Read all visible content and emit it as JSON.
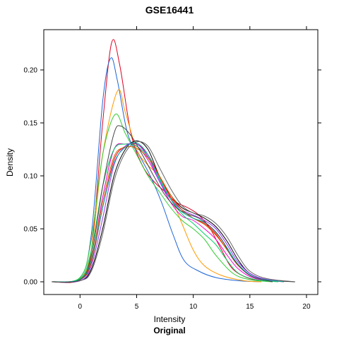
{
  "chart_data": {
    "type": "line",
    "title": "GSE16441",
    "xlabel": "Intensity",
    "ylabel": "Density",
    "subtitle": "Original",
    "xlim": [
      -3.2,
      21.0
    ],
    "ylim": [
      -0.012,
      0.238
    ],
    "xticks": [
      0,
      5,
      10,
      15,
      20
    ],
    "yticks": [
      0.0,
      0.05,
      0.1,
      0.15,
      0.2
    ],
    "xtick_labels": [
      "0",
      "5",
      "10",
      "15",
      "20"
    ],
    "ytick_labels": [
      "0.00",
      "0.05",
      "0.10",
      "0.15",
      "0.20"
    ],
    "grid": false,
    "legend": "none",
    "series": [
      {
        "color": "#DD0022",
        "points": [
          [
            -2.5,
            0.0
          ],
          [
            0,
            0.002
          ],
          [
            1,
            0.03
          ],
          [
            2,
            0.15
          ],
          [
            2.8,
            0.226
          ],
          [
            3.5,
            0.205
          ],
          [
            4.5,
            0.14
          ],
          [
            5.5,
            0.11
          ],
          [
            6.5,
            0.095
          ],
          [
            7.5,
            0.085
          ],
          [
            8.5,
            0.075
          ],
          [
            9.5,
            0.07
          ],
          [
            10.5,
            0.063
          ],
          [
            11.5,
            0.05
          ],
          [
            12.5,
            0.03
          ],
          [
            13.5,
            0.012
          ],
          [
            15,
            0.003
          ],
          [
            17,
            0.0
          ]
        ]
      },
      {
        "color": "#1E64D8",
        "points": [
          [
            -2.5,
            0.0
          ],
          [
            0,
            0.004
          ],
          [
            1,
            0.045
          ],
          [
            2,
            0.17
          ],
          [
            2.7,
            0.211
          ],
          [
            3.3,
            0.19
          ],
          [
            4.2,
            0.14
          ],
          [
            5.2,
            0.12
          ],
          [
            6.2,
            0.1
          ],
          [
            7.2,
            0.075
          ],
          [
            8.2,
            0.045
          ],
          [
            9.2,
            0.02
          ],
          [
            10.5,
            0.01
          ],
          [
            12,
            0.004
          ],
          [
            14,
            0.001
          ],
          [
            16,
            0.0
          ]
        ]
      },
      {
        "color": "#FF9900",
        "points": [
          [
            -2.5,
            0.0
          ],
          [
            0,
            0.003
          ],
          [
            1,
            0.03
          ],
          [
            2,
            0.12
          ],
          [
            3.3,
            0.18
          ],
          [
            4,
            0.16
          ],
          [
            5,
            0.125
          ],
          [
            6,
            0.11
          ],
          [
            7,
            0.1
          ],
          [
            8,
            0.08
          ],
          [
            9,
            0.055
          ],
          [
            10,
            0.03
          ],
          [
            11,
            0.015
          ],
          [
            12.5,
            0.006
          ],
          [
            14.5,
            0.001
          ],
          [
            16,
            0.0
          ]
        ]
      },
      {
        "color": "#33CC33",
        "points": [
          [
            -2.5,
            0.0
          ],
          [
            0,
            0.004
          ],
          [
            1,
            0.04
          ],
          [
            2,
            0.12
          ],
          [
            3.1,
            0.158
          ],
          [
            4,
            0.14
          ],
          [
            5,
            0.12
          ],
          [
            6,
            0.1
          ],
          [
            7,
            0.085
          ],
          [
            8,
            0.07
          ],
          [
            9,
            0.058
          ],
          [
            10,
            0.05
          ],
          [
            11,
            0.04
          ],
          [
            12,
            0.025
          ],
          [
            13.5,
            0.008
          ],
          [
            15,
            0.002
          ],
          [
            17,
            0.0
          ]
        ]
      },
      {
        "color": "#EE00CC",
        "points": [
          [
            -2.5,
            0.0
          ],
          [
            0,
            0.002
          ],
          [
            1,
            0.02
          ],
          [
            2,
            0.08
          ],
          [
            3,
            0.125
          ],
          [
            4,
            0.13
          ],
          [
            5,
            0.128
          ],
          [
            6,
            0.115
          ],
          [
            7,
            0.095
          ],
          [
            8,
            0.075
          ],
          [
            9,
            0.062
          ],
          [
            10,
            0.058
          ],
          [
            11,
            0.05
          ],
          [
            12,
            0.04
          ],
          [
            13,
            0.025
          ],
          [
            14,
            0.012
          ],
          [
            15.5,
            0.003
          ],
          [
            18,
            0.0
          ]
        ]
      },
      {
        "color": "#000000",
        "points": [
          [
            -2.5,
            0.0
          ],
          [
            0,
            0.001
          ],
          [
            1,
            0.012
          ],
          [
            2,
            0.05
          ],
          [
            3,
            0.1
          ],
          [
            4,
            0.125
          ],
          [
            5,
            0.133
          ],
          [
            6,
            0.125
          ],
          [
            7,
            0.1
          ],
          [
            8,
            0.082
          ],
          [
            9,
            0.07
          ],
          [
            10,
            0.065
          ],
          [
            11,
            0.06
          ],
          [
            12,
            0.052
          ],
          [
            13,
            0.038
          ],
          [
            14,
            0.02
          ],
          [
            15,
            0.008
          ],
          [
            16.5,
            0.002
          ],
          [
            19,
            0.0
          ]
        ]
      },
      {
        "color": "#FF0000",
        "points": [
          [
            -2.5,
            0.0
          ],
          [
            0,
            0.002
          ],
          [
            1,
            0.018
          ],
          [
            2,
            0.07
          ],
          [
            3,
            0.115
          ],
          [
            4,
            0.128
          ],
          [
            5,
            0.13
          ],
          [
            6,
            0.12
          ],
          [
            7,
            0.1
          ],
          [
            8,
            0.08
          ],
          [
            9,
            0.068
          ],
          [
            10,
            0.06
          ],
          [
            11,
            0.055
          ],
          [
            12,
            0.045
          ],
          [
            13,
            0.03
          ],
          [
            14,
            0.015
          ],
          [
            15.5,
            0.004
          ],
          [
            18,
            0.0
          ]
        ]
      },
      {
        "color": "#00CC66",
        "points": [
          [
            -2.5,
            0.0
          ],
          [
            0,
            0.003
          ],
          [
            1,
            0.03
          ],
          [
            2,
            0.09
          ],
          [
            3,
            0.125
          ],
          [
            4,
            0.13
          ],
          [
            5,
            0.128
          ],
          [
            6,
            0.118
          ],
          [
            7,
            0.098
          ],
          [
            8,
            0.078
          ],
          [
            9,
            0.064
          ],
          [
            10,
            0.055
          ],
          [
            11,
            0.045
          ],
          [
            12,
            0.035
          ],
          [
            13,
            0.02
          ],
          [
            14,
            0.008
          ],
          [
            15.5,
            0.002
          ],
          [
            17.5,
            0.0
          ]
        ]
      },
      {
        "color": "#9933FF",
        "points": [
          [
            -2.5,
            0.0
          ],
          [
            0,
            0.001
          ],
          [
            1,
            0.015
          ],
          [
            2,
            0.06
          ],
          [
            3,
            0.11
          ],
          [
            4,
            0.128
          ],
          [
            5,
            0.13
          ],
          [
            6,
            0.118
          ],
          [
            7,
            0.095
          ],
          [
            8,
            0.078
          ],
          [
            9,
            0.068
          ],
          [
            10,
            0.063
          ],
          [
            11,
            0.058
          ],
          [
            12,
            0.05
          ],
          [
            13,
            0.035
          ],
          [
            14,
            0.018
          ],
          [
            15.5,
            0.005
          ],
          [
            18,
            0.0
          ]
        ]
      },
      {
        "color": "#666666",
        "points": [
          [
            -2.5,
            0.0
          ],
          [
            0,
            0.001
          ],
          [
            1,
            0.01
          ],
          [
            2,
            0.045
          ],
          [
            3,
            0.095
          ],
          [
            4,
            0.122
          ],
          [
            5,
            0.132
          ],
          [
            6,
            0.128
          ],
          [
            7,
            0.108
          ],
          [
            8,
            0.088
          ],
          [
            9,
            0.072
          ],
          [
            10,
            0.065
          ],
          [
            11,
            0.062
          ],
          [
            12,
            0.055
          ],
          [
            13,
            0.042
          ],
          [
            14,
            0.024
          ],
          [
            15,
            0.01
          ],
          [
            16.5,
            0.003
          ],
          [
            19,
            0.0
          ]
        ]
      },
      {
        "color": "#CC6600",
        "points": [
          [
            -2.5,
            0.0
          ],
          [
            0,
            0.002
          ],
          [
            1,
            0.022
          ],
          [
            2,
            0.075
          ],
          [
            3,
            0.118
          ],
          [
            4,
            0.127
          ],
          [
            5,
            0.126
          ],
          [
            6,
            0.117
          ],
          [
            7,
            0.1
          ],
          [
            8,
            0.082
          ],
          [
            9,
            0.068
          ],
          [
            10,
            0.06
          ],
          [
            11,
            0.054
          ],
          [
            12,
            0.044
          ],
          [
            13,
            0.03
          ],
          [
            14,
            0.015
          ],
          [
            15.5,
            0.004
          ],
          [
            18,
            0.0
          ]
        ]
      },
      {
        "color": "#00AAAA",
        "points": [
          [
            -2.5,
            0.0
          ],
          [
            0,
            0.002
          ],
          [
            1,
            0.02
          ],
          [
            2,
            0.07
          ],
          [
            3,
            0.112
          ],
          [
            4,
            0.127
          ],
          [
            5,
            0.131
          ],
          [
            6,
            0.12
          ],
          [
            7,
            0.097
          ],
          [
            8,
            0.078
          ],
          [
            9,
            0.066
          ],
          [
            10,
            0.06
          ],
          [
            11,
            0.056
          ],
          [
            12,
            0.047
          ],
          [
            13,
            0.032
          ],
          [
            14,
            0.016
          ],
          [
            15.5,
            0.004
          ],
          [
            18,
            0.0
          ]
        ]
      },
      {
        "color": "#444444",
        "points": [
          [
            -2.5,
            0.0
          ],
          [
            0,
            0.002
          ],
          [
            1,
            0.025
          ],
          [
            2,
            0.09
          ],
          [
            3,
            0.14
          ],
          [
            3.6,
            0.147
          ],
          [
            4.5,
            0.138
          ],
          [
            5.5,
            0.12
          ],
          [
            6.5,
            0.1
          ],
          [
            7.5,
            0.082
          ],
          [
            8.5,
            0.07
          ],
          [
            9.5,
            0.064
          ],
          [
            10.5,
            0.06
          ],
          [
            11.5,
            0.052
          ],
          [
            12.5,
            0.04
          ],
          [
            13.5,
            0.022
          ],
          [
            15,
            0.006
          ],
          [
            17,
            0.0
          ]
        ]
      }
    ]
  }
}
